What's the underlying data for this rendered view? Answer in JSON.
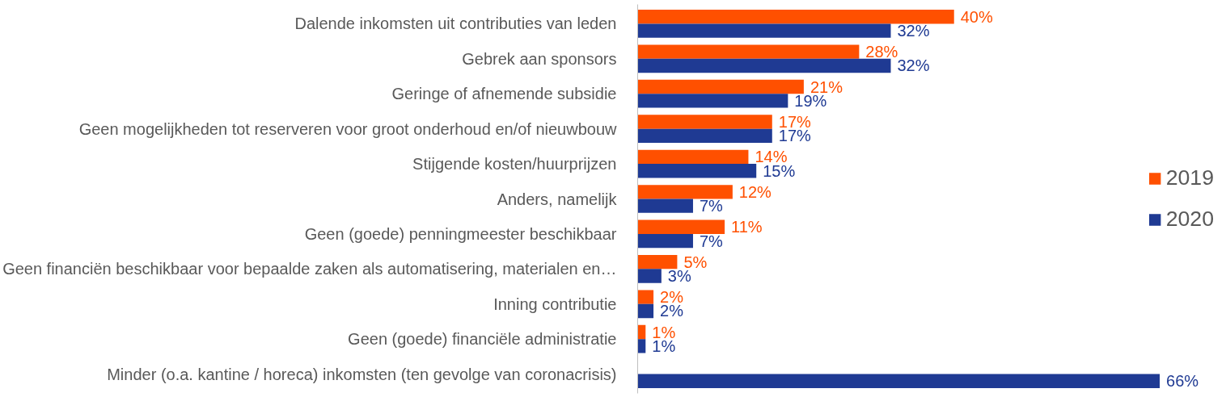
{
  "chart_data": {
    "type": "bar",
    "orientation": "horizontal",
    "legend": "right",
    "grid": false,
    "categories": [
      "Dalende inkomsten uit contributies van leden",
      "Gebrek aan sponsors",
      "Geringe of afnemende subsidie",
      "Geen mogelijkheden tot reserveren voor groot onderhoud en/of nieuwbouw",
      "Stijgende kosten/huurprijzen",
      "Anders, namelijk",
      "Geen (goede) penningmeester beschikbaar",
      "Geen financiën beschikbaar voor bepaalde zaken als automatisering, materialen en…",
      "Inning contributie",
      "Geen (goede) financiële administratie",
      "Minder (o.a. kantine / horeca) inkomsten (ten gevolge van coronacrisis)"
    ],
    "series": [
      {
        "name": "2019",
        "color": "#ff5000",
        "values": [
          40,
          28,
          21,
          17,
          14,
          12,
          11,
          5,
          2,
          1,
          null
        ],
        "value_labels": [
          "40%",
          "28%",
          "21%",
          "17%",
          "14%",
          "12%",
          "11%",
          "5%",
          "2%",
          "1%",
          null
        ]
      },
      {
        "name": "2020",
        "color": "#1f3a93",
        "values": [
          32,
          32,
          19,
          17,
          15,
          7,
          7,
          3,
          2,
          1,
          66
        ],
        "value_labels": [
          "32%",
          "32%",
          "19%",
          "17%",
          "15%",
          "7%",
          "7%",
          "3%",
          "2%",
          "1%",
          "66%"
        ]
      }
    ]
  }
}
